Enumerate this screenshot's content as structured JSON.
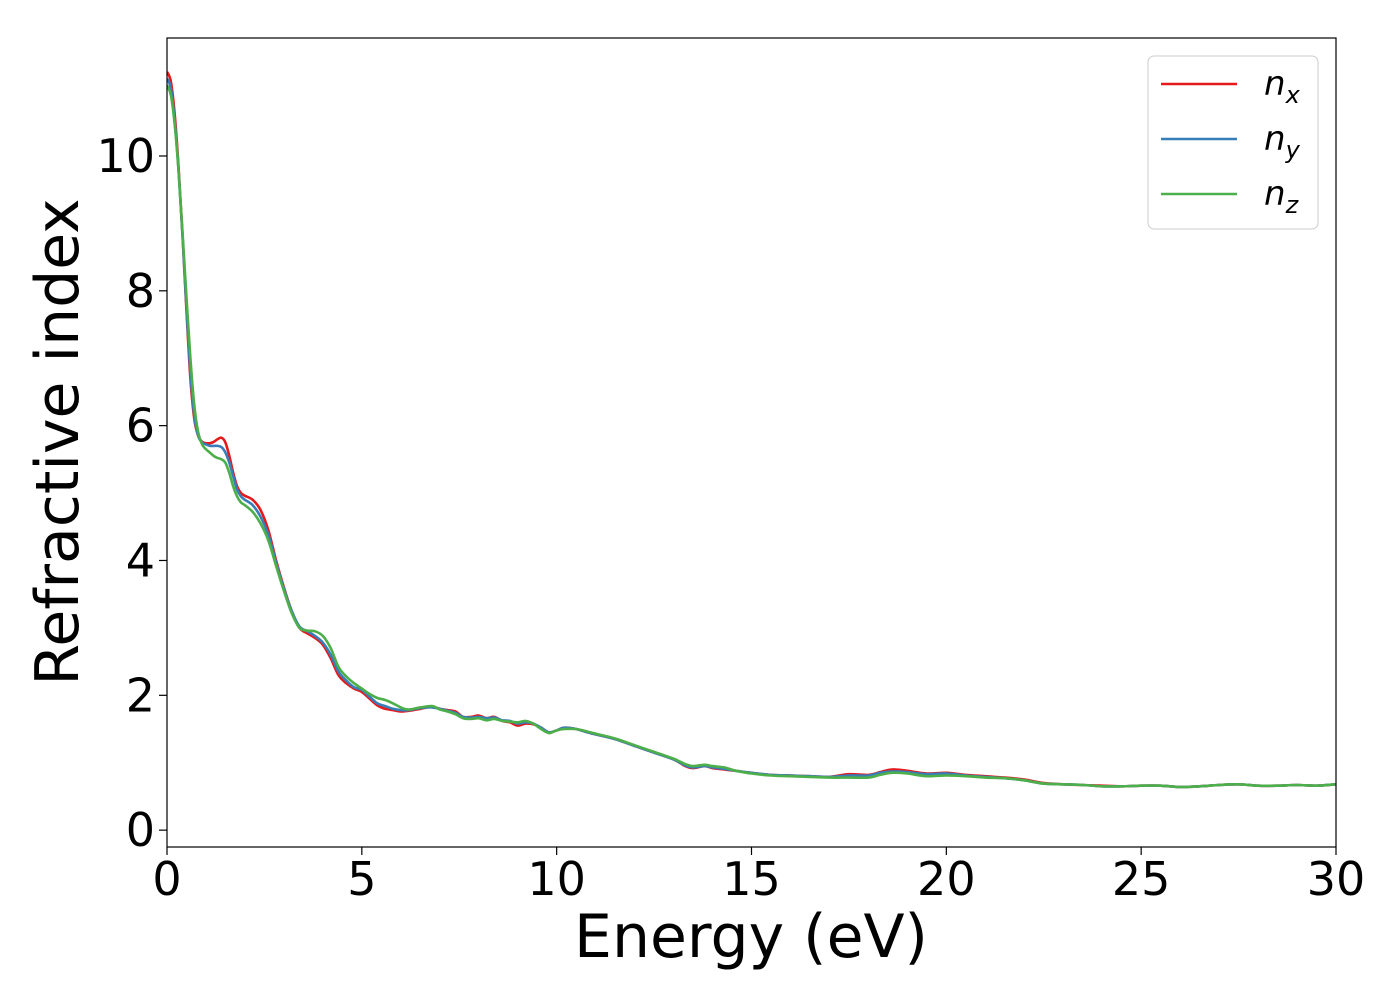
{
  "chart_data": {
    "type": "line",
    "title": "",
    "xlabel": "Energy (eV)",
    "ylabel": "Refractive index",
    "xlim": [
      0,
      30
    ],
    "ylim": [
      -0.25,
      11.75
    ],
    "xticks": [
      0,
      5,
      10,
      15,
      20,
      25,
      30
    ],
    "xtick_labels": [
      "0",
      "5",
      "10",
      "15",
      "20",
      "25",
      "30"
    ],
    "yticks": [
      0,
      2,
      4,
      6,
      8,
      10
    ],
    "ytick_labels": [
      "0",
      "2",
      "4",
      "6",
      "8",
      "10"
    ],
    "grid": false,
    "legend_position": "top-right",
    "series": [
      {
        "name": "n_x",
        "label_main": "n",
        "label_sub": "x",
        "color": "#e41a1c",
        "points": [
          [
            0,
            11.25
          ],
          [
            0.1,
            11.1
          ],
          [
            0.2,
            10.6
          ],
          [
            0.3,
            9.8
          ],
          [
            0.4,
            8.8
          ],
          [
            0.5,
            7.7
          ],
          [
            0.6,
            6.7
          ],
          [
            0.7,
            6.1
          ],
          [
            0.8,
            5.85
          ],
          [
            0.9,
            5.76
          ],
          [
            1.0,
            5.74
          ],
          [
            1.1,
            5.74
          ],
          [
            1.2,
            5.76
          ],
          [
            1.3,
            5.8
          ],
          [
            1.4,
            5.82
          ],
          [
            1.5,
            5.75
          ],
          [
            1.6,
            5.55
          ],
          [
            1.7,
            5.3
          ],
          [
            1.8,
            5.1
          ],
          [
            1.9,
            5.0
          ],
          [
            2.0,
            4.96
          ],
          [
            2.2,
            4.9
          ],
          [
            2.4,
            4.75
          ],
          [
            2.6,
            4.45
          ],
          [
            2.8,
            4.0
          ],
          [
            3.0,
            3.6
          ],
          [
            3.2,
            3.25
          ],
          [
            3.4,
            3.0
          ],
          [
            3.6,
            2.92
          ],
          [
            3.8,
            2.85
          ],
          [
            4.0,
            2.75
          ],
          [
            4.2,
            2.55
          ],
          [
            4.4,
            2.3
          ],
          [
            4.6,
            2.18
          ],
          [
            4.8,
            2.1
          ],
          [
            5.0,
            2.05
          ],
          [
            5.2,
            1.95
          ],
          [
            5.4,
            1.85
          ],
          [
            5.6,
            1.8
          ],
          [
            5.8,
            1.78
          ],
          [
            6.0,
            1.76
          ],
          [
            6.2,
            1.77
          ],
          [
            6.5,
            1.8
          ],
          [
            6.8,
            1.83
          ],
          [
            7.0,
            1.8
          ],
          [
            7.2,
            1.78
          ],
          [
            7.4,
            1.76
          ],
          [
            7.6,
            1.68
          ],
          [
            7.8,
            1.68
          ],
          [
            8.0,
            1.7
          ],
          [
            8.2,
            1.66
          ],
          [
            8.4,
            1.68
          ],
          [
            8.6,
            1.62
          ],
          [
            8.8,
            1.6
          ],
          [
            9.0,
            1.55
          ],
          [
            9.2,
            1.58
          ],
          [
            9.4,
            1.57
          ],
          [
            9.6,
            1.52
          ],
          [
            9.8,
            1.45
          ],
          [
            10.0,
            1.48
          ],
          [
            10.2,
            1.52
          ],
          [
            10.5,
            1.5
          ],
          [
            10.8,
            1.45
          ],
          [
            11.0,
            1.42
          ],
          [
            11.5,
            1.35
          ],
          [
            12.0,
            1.25
          ],
          [
            12.5,
            1.15
          ],
          [
            13.0,
            1.05
          ],
          [
            13.3,
            0.95
          ],
          [
            13.5,
            0.92
          ],
          [
            13.8,
            0.95
          ],
          [
            14.0,
            0.92
          ],
          [
            14.3,
            0.9
          ],
          [
            14.6,
            0.88
          ],
          [
            15.0,
            0.85
          ],
          [
            15.5,
            0.82
          ],
          [
            16.0,
            0.81
          ],
          [
            16.5,
            0.8
          ],
          [
            17.0,
            0.79
          ],
          [
            17.5,
            0.83
          ],
          [
            18.0,
            0.82
          ],
          [
            18.3,
            0.86
          ],
          [
            18.6,
            0.9
          ],
          [
            19.0,
            0.88
          ],
          [
            19.5,
            0.84
          ],
          [
            20.0,
            0.85
          ],
          [
            20.5,
            0.82
          ],
          [
            21.0,
            0.8
          ],
          [
            21.5,
            0.78
          ],
          [
            22.0,
            0.75
          ],
          [
            22.5,
            0.7
          ],
          [
            23.0,
            0.68
          ],
          [
            23.5,
            0.67
          ],
          [
            24.0,
            0.66
          ],
          [
            24.5,
            0.65
          ],
          [
            25.0,
            0.66
          ],
          [
            25.5,
            0.66
          ],
          [
            26.0,
            0.64
          ],
          [
            26.5,
            0.65
          ],
          [
            27.0,
            0.67
          ],
          [
            27.5,
            0.68
          ],
          [
            28.0,
            0.66
          ],
          [
            28.5,
            0.66
          ],
          [
            29.0,
            0.67
          ],
          [
            29.5,
            0.66
          ],
          [
            30.0,
            0.68
          ]
        ]
      },
      {
        "name": "n_y",
        "label_main": "n",
        "label_sub": "y",
        "color": "#377eb8",
        "points": [
          [
            0,
            11.15
          ],
          [
            0.1,
            11.0
          ],
          [
            0.2,
            10.5
          ],
          [
            0.3,
            9.75
          ],
          [
            0.4,
            8.8
          ],
          [
            0.5,
            7.75
          ],
          [
            0.6,
            6.8
          ],
          [
            0.7,
            6.15
          ],
          [
            0.8,
            5.85
          ],
          [
            0.9,
            5.75
          ],
          [
            1.0,
            5.72
          ],
          [
            1.1,
            5.7
          ],
          [
            1.2,
            5.7
          ],
          [
            1.3,
            5.7
          ],
          [
            1.4,
            5.68
          ],
          [
            1.5,
            5.6
          ],
          [
            1.6,
            5.45
          ],
          [
            1.7,
            5.25
          ],
          [
            1.8,
            5.05
          ],
          [
            1.9,
            4.95
          ],
          [
            2.0,
            4.9
          ],
          [
            2.2,
            4.82
          ],
          [
            2.4,
            4.65
          ],
          [
            2.6,
            4.38
          ],
          [
            2.8,
            3.97
          ],
          [
            3.0,
            3.58
          ],
          [
            3.2,
            3.25
          ],
          [
            3.4,
            3.02
          ],
          [
            3.6,
            2.95
          ],
          [
            3.8,
            2.88
          ],
          [
            4.0,
            2.78
          ],
          [
            4.2,
            2.6
          ],
          [
            4.4,
            2.35
          ],
          [
            4.6,
            2.22
          ],
          [
            4.8,
            2.12
          ],
          [
            5.0,
            2.08
          ],
          [
            5.2,
            1.98
          ],
          [
            5.4,
            1.88
          ],
          [
            5.6,
            1.84
          ],
          [
            5.8,
            1.8
          ],
          [
            6.0,
            1.78
          ],
          [
            6.2,
            1.78
          ],
          [
            6.5,
            1.81
          ],
          [
            6.8,
            1.82
          ],
          [
            7.0,
            1.8
          ],
          [
            7.2,
            1.77
          ],
          [
            7.4,
            1.74
          ],
          [
            7.6,
            1.68
          ],
          [
            7.8,
            1.67
          ],
          [
            8.0,
            1.68
          ],
          [
            8.2,
            1.66
          ],
          [
            8.4,
            1.67
          ],
          [
            8.6,
            1.63
          ],
          [
            8.8,
            1.62
          ],
          [
            9.0,
            1.58
          ],
          [
            9.2,
            1.6
          ],
          [
            9.4,
            1.58
          ],
          [
            9.6,
            1.52
          ],
          [
            9.8,
            1.45
          ],
          [
            10.0,
            1.48
          ],
          [
            10.2,
            1.52
          ],
          [
            10.5,
            1.5
          ],
          [
            10.8,
            1.45
          ],
          [
            11.0,
            1.42
          ],
          [
            11.5,
            1.35
          ],
          [
            12.0,
            1.25
          ],
          [
            12.5,
            1.15
          ],
          [
            13.0,
            1.05
          ],
          [
            13.3,
            0.96
          ],
          [
            13.5,
            0.93
          ],
          [
            13.8,
            0.95
          ],
          [
            14.0,
            0.93
          ],
          [
            14.3,
            0.91
          ],
          [
            14.6,
            0.88
          ],
          [
            15.0,
            0.85
          ],
          [
            15.5,
            0.82
          ],
          [
            16.0,
            0.81
          ],
          [
            16.5,
            0.8
          ],
          [
            17.0,
            0.79
          ],
          [
            17.5,
            0.81
          ],
          [
            18.0,
            0.81
          ],
          [
            18.3,
            0.85
          ],
          [
            18.6,
            0.87
          ],
          [
            19.0,
            0.86
          ],
          [
            19.5,
            0.83
          ],
          [
            20.0,
            0.84
          ],
          [
            20.5,
            0.81
          ],
          [
            21.0,
            0.79
          ],
          [
            21.5,
            0.77
          ],
          [
            22.0,
            0.74
          ],
          [
            22.5,
            0.69
          ],
          [
            23.0,
            0.68
          ],
          [
            23.5,
            0.67
          ],
          [
            24.0,
            0.65
          ],
          [
            24.5,
            0.65
          ],
          [
            25.0,
            0.66
          ],
          [
            25.5,
            0.66
          ],
          [
            26.0,
            0.64
          ],
          [
            26.5,
            0.65
          ],
          [
            27.0,
            0.67
          ],
          [
            27.5,
            0.68
          ],
          [
            28.0,
            0.66
          ],
          [
            28.5,
            0.66
          ],
          [
            29.0,
            0.67
          ],
          [
            29.5,
            0.66
          ],
          [
            30.0,
            0.68
          ]
        ]
      },
      {
        "name": "n_z",
        "label_main": "n",
        "label_sub": "z",
        "color": "#4daf4a",
        "points": [
          [
            0,
            11.05
          ],
          [
            0.1,
            10.9
          ],
          [
            0.2,
            10.45
          ],
          [
            0.3,
            9.75
          ],
          [
            0.4,
            8.85
          ],
          [
            0.5,
            7.9
          ],
          [
            0.6,
            7.0
          ],
          [
            0.7,
            6.3
          ],
          [
            0.8,
            5.9
          ],
          [
            0.9,
            5.72
          ],
          [
            1.0,
            5.65
          ],
          [
            1.1,
            5.6
          ],
          [
            1.2,
            5.55
          ],
          [
            1.3,
            5.52
          ],
          [
            1.4,
            5.5
          ],
          [
            1.5,
            5.45
          ],
          [
            1.6,
            5.3
          ],
          [
            1.7,
            5.1
          ],
          [
            1.8,
            4.95
          ],
          [
            1.9,
            4.86
          ],
          [
            2.0,
            4.82
          ],
          [
            2.2,
            4.72
          ],
          [
            2.4,
            4.55
          ],
          [
            2.6,
            4.3
          ],
          [
            2.8,
            3.92
          ],
          [
            3.0,
            3.55
          ],
          [
            3.2,
            3.22
          ],
          [
            3.4,
            3.0
          ],
          [
            3.6,
            2.96
          ],
          [
            3.8,
            2.95
          ],
          [
            4.0,
            2.88
          ],
          [
            4.2,
            2.7
          ],
          [
            4.4,
            2.42
          ],
          [
            4.6,
            2.28
          ],
          [
            4.8,
            2.18
          ],
          [
            5.0,
            2.1
          ],
          [
            5.2,
            2.02
          ],
          [
            5.4,
            1.96
          ],
          [
            5.6,
            1.93
          ],
          [
            5.8,
            1.88
          ],
          [
            6.0,
            1.82
          ],
          [
            6.2,
            1.79
          ],
          [
            6.5,
            1.82
          ],
          [
            6.8,
            1.84
          ],
          [
            7.0,
            1.79
          ],
          [
            7.2,
            1.76
          ],
          [
            7.4,
            1.72
          ],
          [
            7.6,
            1.66
          ],
          [
            7.8,
            1.65
          ],
          [
            8.0,
            1.66
          ],
          [
            8.2,
            1.63
          ],
          [
            8.4,
            1.65
          ],
          [
            8.6,
            1.62
          ],
          [
            8.8,
            1.61
          ],
          [
            9.0,
            1.6
          ],
          [
            9.2,
            1.62
          ],
          [
            9.4,
            1.58
          ],
          [
            9.6,
            1.5
          ],
          [
            9.8,
            1.44
          ],
          [
            10.0,
            1.48
          ],
          [
            10.2,
            1.5
          ],
          [
            10.5,
            1.5
          ],
          [
            10.8,
            1.46
          ],
          [
            11.0,
            1.43
          ],
          [
            11.5,
            1.36
          ],
          [
            12.0,
            1.26
          ],
          [
            12.5,
            1.16
          ],
          [
            13.0,
            1.06
          ],
          [
            13.3,
            0.98
          ],
          [
            13.5,
            0.95
          ],
          [
            13.8,
            0.97
          ],
          [
            14.0,
            0.95
          ],
          [
            14.3,
            0.93
          ],
          [
            14.6,
            0.88
          ],
          [
            15.0,
            0.84
          ],
          [
            15.5,
            0.81
          ],
          [
            16.0,
            0.8
          ],
          [
            16.5,
            0.79
          ],
          [
            17.0,
            0.78
          ],
          [
            17.5,
            0.78
          ],
          [
            18.0,
            0.78
          ],
          [
            18.3,
            0.82
          ],
          [
            18.6,
            0.85
          ],
          [
            19.0,
            0.84
          ],
          [
            19.5,
            0.8
          ],
          [
            20.0,
            0.81
          ],
          [
            20.5,
            0.8
          ],
          [
            21.0,
            0.78
          ],
          [
            21.5,
            0.77
          ],
          [
            22.0,
            0.74
          ],
          [
            22.5,
            0.69
          ],
          [
            23.0,
            0.68
          ],
          [
            23.5,
            0.67
          ],
          [
            24.0,
            0.65
          ],
          [
            24.5,
            0.65
          ],
          [
            25.0,
            0.66
          ],
          [
            25.5,
            0.66
          ],
          [
            26.0,
            0.64
          ],
          [
            26.5,
            0.65
          ],
          [
            27.0,
            0.67
          ],
          [
            27.5,
            0.68
          ],
          [
            28.0,
            0.66
          ],
          [
            28.5,
            0.66
          ],
          [
            29.0,
            0.67
          ],
          [
            29.5,
            0.66
          ],
          [
            30.0,
            0.68
          ]
        ]
      }
    ]
  }
}
